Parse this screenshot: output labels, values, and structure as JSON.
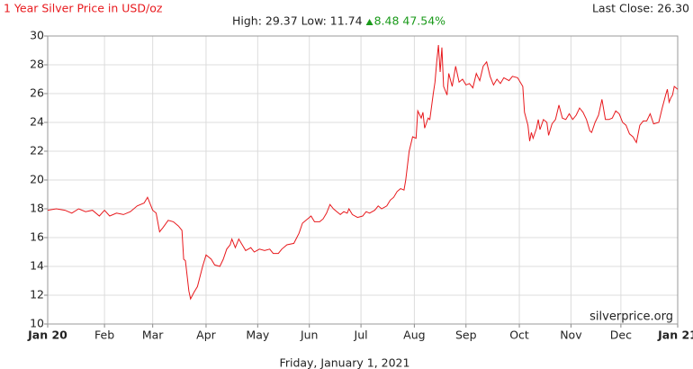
{
  "chart_data": {
    "type": "line",
    "title": "1 Year Silver Price in USD/oz",
    "last_close": "Last Close: 26.30",
    "summary": "High: 29.37 Low: 11.74",
    "change": "8.48 47.54%",
    "watermark": "silverprice.org",
    "footer": "Friday, January 1, 2021",
    "color": "#e8191d",
    "grid": true,
    "xlim": [
      0,
      366
    ],
    "ylim": [
      10,
      30
    ],
    "yticks": [
      10,
      12,
      14,
      16,
      18,
      20,
      22,
      24,
      26,
      28,
      30
    ],
    "xticks": [
      {
        "value": 0,
        "label": "Jan 20"
      },
      {
        "value": 33,
        "label": "Feb"
      },
      {
        "value": 61,
        "label": "Mar"
      },
      {
        "value": 92,
        "label": "Apr"
      },
      {
        "value": 122,
        "label": "May"
      },
      {
        "value": 152,
        "label": "Jun"
      },
      {
        "value": 182,
        "label": "Jul"
      },
      {
        "value": 213,
        "label": "Aug"
      },
      {
        "value": 243,
        "label": "Sep"
      },
      {
        "value": 274,
        "label": "Oct"
      },
      {
        "value": 304,
        "label": "Nov"
      },
      {
        "value": 333,
        "label": "Dec"
      },
      {
        "value": 366,
        "label": "Jan 21"
      }
    ],
    "x": [
      0,
      5,
      10,
      14,
      18,
      22,
      26,
      30,
      33,
      36,
      40,
      44,
      48,
      52,
      56,
      58,
      61,
      63,
      65,
      67,
      70,
      73,
      76,
      78,
      79,
      80,
      82,
      83,
      85,
      87,
      90,
      92,
      95,
      97,
      100,
      102,
      104,
      106,
      107,
      109,
      111,
      113,
      115,
      118,
      120,
      123,
      126,
      129,
      131,
      134,
      136,
      139,
      143,
      146,
      148,
      151,
      153,
      155,
      158,
      160,
      162,
      164,
      166,
      168,
      170,
      172,
      174,
      175,
      177,
      180,
      183,
      185,
      187,
      190,
      192,
      194,
      197,
      199,
      201,
      203,
      205,
      207,
      208,
      210,
      212,
      214,
      215,
      217,
      218,
      219,
      221,
      222,
      224,
      225,
      226,
      227,
      228,
      229,
      230,
      232,
      233,
      235,
      237,
      239,
      241,
      243,
      245,
      247,
      249,
      251,
      253,
      255,
      257,
      259,
      261,
      263,
      265,
      268,
      270,
      273,
      276,
      277,
      279,
      280,
      281,
      282,
      284,
      285,
      286,
      288,
      290,
      291,
      293,
      295,
      297,
      299,
      301,
      303,
      305,
      307,
      309,
      311,
      313,
      315,
      316,
      318,
      320,
      322,
      324,
      326,
      328,
      330,
      332,
      334,
      336,
      338,
      340,
      342,
      344,
      346,
      348,
      350,
      352,
      355,
      357,
      359,
      360,
      361,
      362,
      363,
      364,
      365,
      366
    ],
    "values": [
      17.9,
      18.0,
      17.9,
      17.7,
      18.0,
      17.8,
      17.9,
      17.5,
      17.9,
      17.5,
      17.7,
      17.6,
      17.8,
      18.2,
      18.4,
      18.8,
      17.9,
      17.7,
      16.4,
      16.7,
      17.2,
      17.1,
      16.8,
      16.5,
      14.5,
      14.4,
      12.3,
      11.74,
      12.2,
      12.6,
      14.0,
      14.8,
      14.5,
      14.1,
      14.0,
      14.5,
      15.2,
      15.5,
      15.9,
      15.3,
      15.9,
      15.5,
      15.1,
      15.3,
      15.0,
      15.2,
      15.1,
      15.2,
      14.9,
      14.9,
      15.2,
      15.5,
      15.6,
      16.3,
      17.0,
      17.3,
      17.5,
      17.1,
      17.1,
      17.3,
      17.7,
      18.3,
      18.0,
      17.8,
      17.6,
      17.8,
      17.7,
      18.0,
      17.6,
      17.4,
      17.5,
      17.8,
      17.7,
      17.9,
      18.2,
      18.0,
      18.2,
      18.6,
      18.8,
      19.2,
      19.4,
      19.3,
      20.0,
      22.0,
      23.0,
      22.9,
      24.8,
      24.3,
      24.7,
      23.6,
      24.3,
      24.2,
      26.0,
      26.8,
      28.2,
      29.37,
      27.5,
      29.2,
      26.5,
      25.9,
      27.4,
      26.5,
      27.9,
      26.8,
      27.0,
      26.6,
      26.7,
      26.4,
      27.4,
      26.9,
      27.9,
      28.2,
      27.2,
      26.6,
      27.0,
      26.7,
      27.1,
      26.9,
      27.2,
      27.1,
      26.5,
      24.7,
      23.8,
      22.7,
      23.3,
      22.9,
      23.6,
      24.2,
      23.5,
      24.2,
      24.0,
      23.1,
      23.9,
      24.2,
      25.2,
      24.3,
      24.2,
      24.6,
      24.2,
      24.5,
      25.0,
      24.7,
      24.2,
      23.4,
      23.3,
      24.0,
      24.5,
      25.6,
      24.2,
      24.2,
      24.3,
      24.8,
      24.6,
      24.0,
      23.8,
      23.2,
      23.0,
      22.6,
      23.8,
      24.1,
      24.1,
      24.6,
      23.9,
      24.0,
      25.0,
      25.9,
      26.3,
      25.4,
      25.7,
      25.9,
      26.5,
      26.4,
      26.3
    ]
  }
}
